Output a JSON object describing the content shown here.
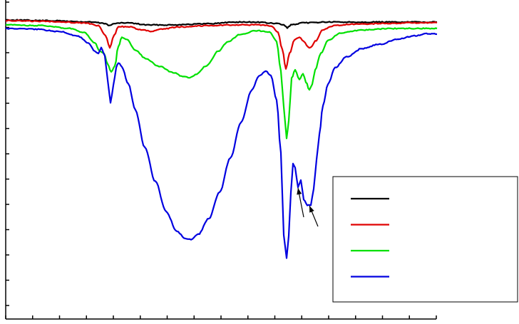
{
  "chart_data": {
    "type": "line",
    "title": "",
    "xlabel": "",
    "ylabel": "",
    "grid": false,
    "legend": {
      "placement": "bottom-right",
      "entries": [
        "",
        "",
        "",
        ""
      ]
    },
    "x_range": [
      0,
      605
    ],
    "y_range": [
      0,
      455
    ],
    "series": [
      {
        "color": "#000000",
        "points": [
          [
            0,
            28
          ],
          [
            60,
            29
          ],
          [
            120,
            31
          ],
          [
            140,
            33
          ],
          [
            146,
            36
          ],
          [
            152,
            33
          ],
          [
            170,
            32
          ],
          [
            200,
            35
          ],
          [
            230,
            35
          ],
          [
            260,
            34
          ],
          [
            290,
            33
          ],
          [
            320,
            31
          ],
          [
            350,
            31
          ],
          [
            380,
            33
          ],
          [
            390,
            35
          ],
          [
            395,
            39
          ],
          [
            400,
            35
          ],
          [
            420,
            32
          ],
          [
            450,
            31
          ],
          [
            480,
            31
          ],
          [
            510,
            31
          ],
          [
            540,
            31
          ],
          [
            570,
            31
          ],
          [
            605,
            31
          ]
        ]
      },
      {
        "color": "#e00000",
        "points": [
          [
            0,
            29
          ],
          [
            60,
            30
          ],
          [
            110,
            32
          ],
          [
            130,
            36
          ],
          [
            140,
            50
          ],
          [
            146,
            67
          ],
          [
            152,
            50
          ],
          [
            158,
            37
          ],
          [
            175,
            38
          ],
          [
            190,
            42
          ],
          [
            205,
            44
          ],
          [
            220,
            41
          ],
          [
            240,
            38
          ],
          [
            280,
            36
          ],
          [
            320,
            35
          ],
          [
            350,
            35
          ],
          [
            372,
            36
          ],
          [
            382,
            45
          ],
          [
            388,
            70
          ],
          [
            393,
            97
          ],
          [
            398,
            75
          ],
          [
            405,
            56
          ],
          [
            412,
            52
          ],
          [
            418,
            58
          ],
          [
            424,
            66
          ],
          [
            428,
            67
          ],
          [
            434,
            58
          ],
          [
            445,
            42
          ],
          [
            460,
            36
          ],
          [
            490,
            34
          ],
          [
            530,
            33
          ],
          [
            570,
            32
          ],
          [
            605,
            32
          ]
        ]
      },
      {
        "color": "#00e000",
        "points": [
          [
            0,
            35
          ],
          [
            50,
            36
          ],
          [
            90,
            40
          ],
          [
            110,
            46
          ],
          [
            125,
            60
          ],
          [
            132,
            72
          ],
          [
            138,
            75
          ],
          [
            143,
            90
          ],
          [
            148,
            101
          ],
          [
            153,
            93
          ],
          [
            158,
            65
          ],
          [
            163,
            52
          ],
          [
            170,
            56
          ],
          [
            182,
            70
          ],
          [
            196,
            82
          ],
          [
            215,
            93
          ],
          [
            235,
            102
          ],
          [
            250,
            108
          ],
          [
            258,
            109
          ],
          [
            268,
            104
          ],
          [
            282,
            92
          ],
          [
            298,
            72
          ],
          [
            312,
            58
          ],
          [
            330,
            48
          ],
          [
            352,
            43
          ],
          [
            370,
            45
          ],
          [
            380,
            58
          ],
          [
            386,
            100
          ],
          [
            390,
            150
          ],
          [
            394,
            195
          ],
          [
            397,
            170
          ],
          [
            401,
            110
          ],
          [
            406,
            98
          ],
          [
            412,
            112
          ],
          [
            417,
            103
          ],
          [
            421,
            115
          ],
          [
            426,
            126
          ],
          [
            430,
            118
          ],
          [
            434,
            98
          ],
          [
            442,
            75
          ],
          [
            452,
            57
          ],
          [
            470,
            46
          ],
          [
            500,
            42
          ],
          [
            540,
            40
          ],
          [
            580,
            40
          ],
          [
            605,
            40
          ]
        ]
      },
      {
        "color": "#0000e0",
        "points": [
          [
            0,
            40
          ],
          [
            40,
            41
          ],
          [
            75,
            44
          ],
          [
            100,
            50
          ],
          [
            116,
            60
          ],
          [
            125,
            72
          ],
          [
            130,
            75
          ],
          [
            134,
            67
          ],
          [
            139,
            78
          ],
          [
            143,
            112
          ],
          [
            147,
            145
          ],
          [
            151,
            120
          ],
          [
            155,
            95
          ],
          [
            158,
            88
          ],
          [
            163,
            94
          ],
          [
            172,
            118
          ],
          [
            182,
            155
          ],
          [
            195,
            207
          ],
          [
            210,
            255
          ],
          [
            225,
            297
          ],
          [
            240,
            325
          ],
          [
            252,
            335
          ],
          [
            260,
            336
          ],
          [
            270,
            329
          ],
          [
            285,
            307
          ],
          [
            300,
            270
          ],
          [
            315,
            222
          ],
          [
            330,
            172
          ],
          [
            345,
            127
          ],
          [
            355,
            107
          ],
          [
            365,
            100
          ],
          [
            372,
            106
          ],
          [
            380,
            140
          ],
          [
            386,
            215
          ],
          [
            390,
            330
          ],
          [
            394,
            363
          ],
          [
            397,
            332
          ],
          [
            400,
            270
          ],
          [
            403,
            230
          ],
          [
            406,
            236
          ],
          [
            410,
            263
          ],
          [
            414,
            253
          ],
          [
            418,
            280
          ],
          [
            423,
            288
          ],
          [
            428,
            288
          ],
          [
            432,
            265
          ],
          [
            436,
            225
          ],
          [
            440,
            188
          ],
          [
            445,
            148
          ],
          [
            452,
            118
          ],
          [
            462,
            95
          ],
          [
            478,
            80
          ],
          [
            500,
            68
          ],
          [
            525,
            62
          ],
          [
            550,
            55
          ],
          [
            575,
            50
          ],
          [
            592,
            47
          ],
          [
            605,
            48
          ]
        ]
      }
    ],
    "annotations": [
      {
        "type": "arrow",
        "from": [
          418,
          305
        ],
        "to": [
          410,
          264
        ]
      },
      {
        "type": "arrow",
        "from": [
          438,
          318
        ],
        "to": [
          426,
          289
        ]
      }
    ]
  }
}
